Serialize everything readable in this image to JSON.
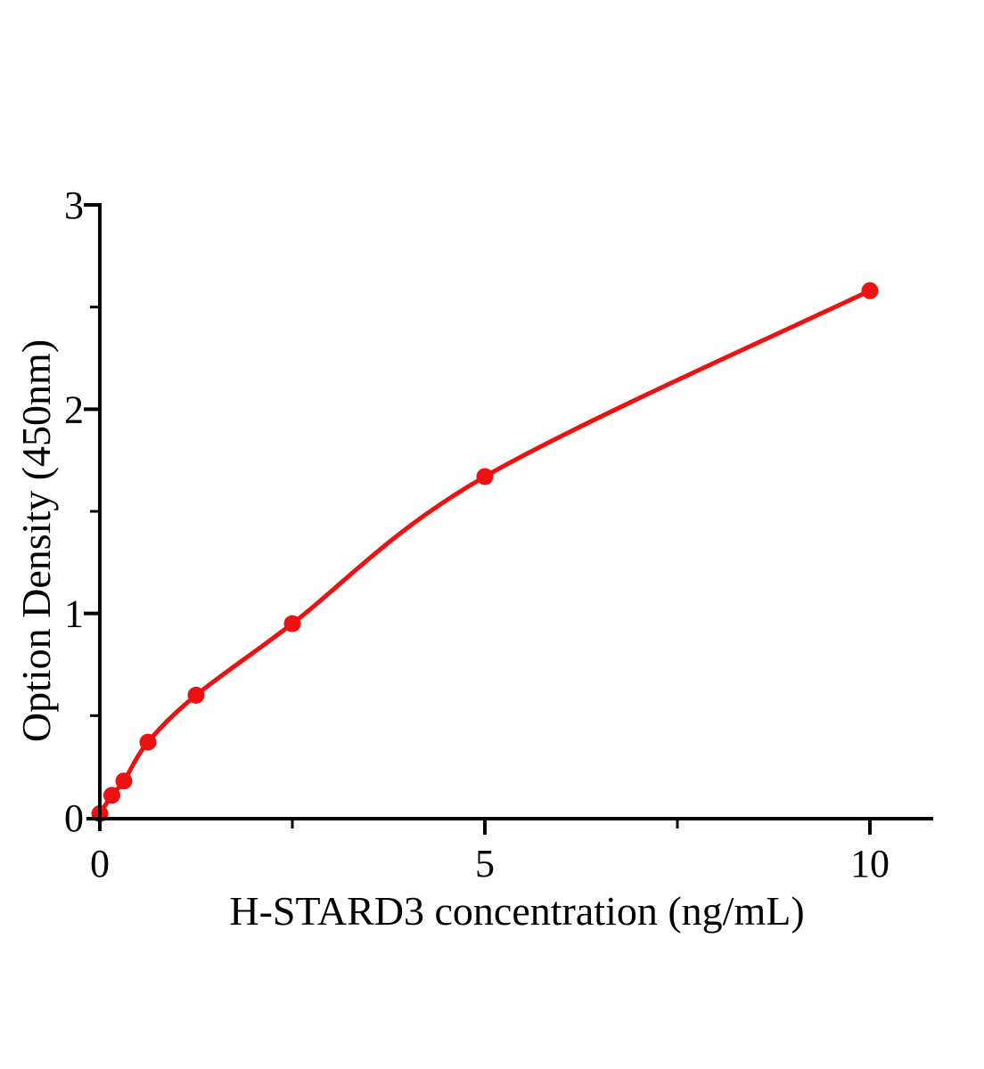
{
  "chart_data": {
    "type": "scatter",
    "title": "",
    "xlabel": "H-STARD3 concentration (ng/mL)",
    "ylabel": "Option Density (450nm)",
    "x": [
      0,
      0.156,
      0.312,
      0.625,
      1.25,
      2.5,
      5,
      10
    ],
    "y": [
      0.02,
      0.11,
      0.18,
      0.37,
      0.6,
      0.95,
      1.67,
      2.58
    ],
    "fit_curve": true,
    "xlim": [
      0,
      10.8
    ],
    "ylim": [
      0,
      3
    ],
    "x_major_ticks": [
      0,
      5,
      10
    ],
    "x_minor_ticks": [
      2.5,
      7.5
    ],
    "y_major_ticks": [
      0,
      1,
      2,
      3
    ],
    "y_minor_ticks": [
      0.5,
      1.5,
      2.5
    ],
    "x_tick_labels": [
      "0",
      "5",
      "10"
    ],
    "y_tick_labels": [
      "0",
      "1",
      "2",
      "3"
    ],
    "grid": false,
    "legend": false,
    "colors": {
      "curve": "#ee1111",
      "point": "#ee1111",
      "axis": "#000000",
      "text": "#000000"
    }
  }
}
